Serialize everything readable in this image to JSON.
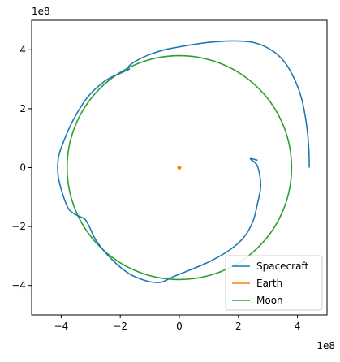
{
  "chart_data": {
    "type": "line",
    "title": "",
    "xlabel": "",
    "ylabel": "",
    "xlim": [
      -5,
      5
    ],
    "ylim": [
      -5,
      5
    ],
    "x_scale_label": "1e8",
    "y_scale_label": "1e8",
    "x_ticks": [
      -4,
      -2,
      0,
      2,
      4
    ],
    "y_ticks": [
      -4,
      -2,
      0,
      2,
      4
    ],
    "x_tick_labels": [
      "−4",
      "−2",
      "0",
      "2",
      "4"
    ],
    "y_tick_labels": [
      "−4",
      "−2",
      "0",
      "2",
      "4"
    ],
    "grid": false,
    "legend_placement": "lower-right",
    "series": [
      {
        "name": "Spacecraft",
        "color": "#1f77b4",
        "x": [
          4.4,
          4.38,
          4.3,
          4.15,
          3.9,
          3.55,
          3.1,
          2.5,
          1.8,
          1.0,
          0.3,
          -0.5,
          -1.1,
          -1.5,
          -1.7,
          -1.75,
          -1.7,
          -2.0,
          -2.5,
          -3.1,
          -3.6,
          -3.95,
          -4.1,
          -4.1,
          -3.95,
          -3.75,
          -3.5,
          -3.2,
          -3.05,
          -2.8,
          -2.3,
          -1.7,
          -1.1,
          -0.7,
          -0.5,
          -0.2,
          0.3,
          1.0,
          1.7,
          2.2,
          2.5,
          2.65,
          2.75,
          2.73,
          2.62,
          2.4,
          2.65
        ],
        "y": [
          0.0,
          0.7,
          1.5,
          2.3,
          3.0,
          3.6,
          4.0,
          4.25,
          4.3,
          4.25,
          4.15,
          4.0,
          3.8,
          3.6,
          3.45,
          3.32,
          3.34,
          3.2,
          2.95,
          2.4,
          1.6,
          0.8,
          0.3,
          -0.3,
          -0.9,
          -1.4,
          -1.6,
          -1.75,
          -2.0,
          -2.5,
          -3.1,
          -3.6,
          -3.85,
          -3.9,
          -3.85,
          -3.7,
          -3.5,
          -3.2,
          -2.8,
          -2.35,
          -1.8,
          -1.2,
          -0.7,
          -0.3,
          0.1,
          0.3,
          0.25
        ]
      },
      {
        "name": "Earth",
        "color": "#ff7f0e",
        "x": [
          -0.02,
          0.0,
          0.02,
          0.0,
          -0.02
        ],
        "y": [
          0.0,
          0.02,
          0.0,
          -0.02,
          0.0
        ]
      },
      {
        "name": "Moon",
        "color": "#2ca02c",
        "circle": {
          "cx": 0,
          "cy": 0,
          "r": 3.8
        }
      }
    ]
  }
}
